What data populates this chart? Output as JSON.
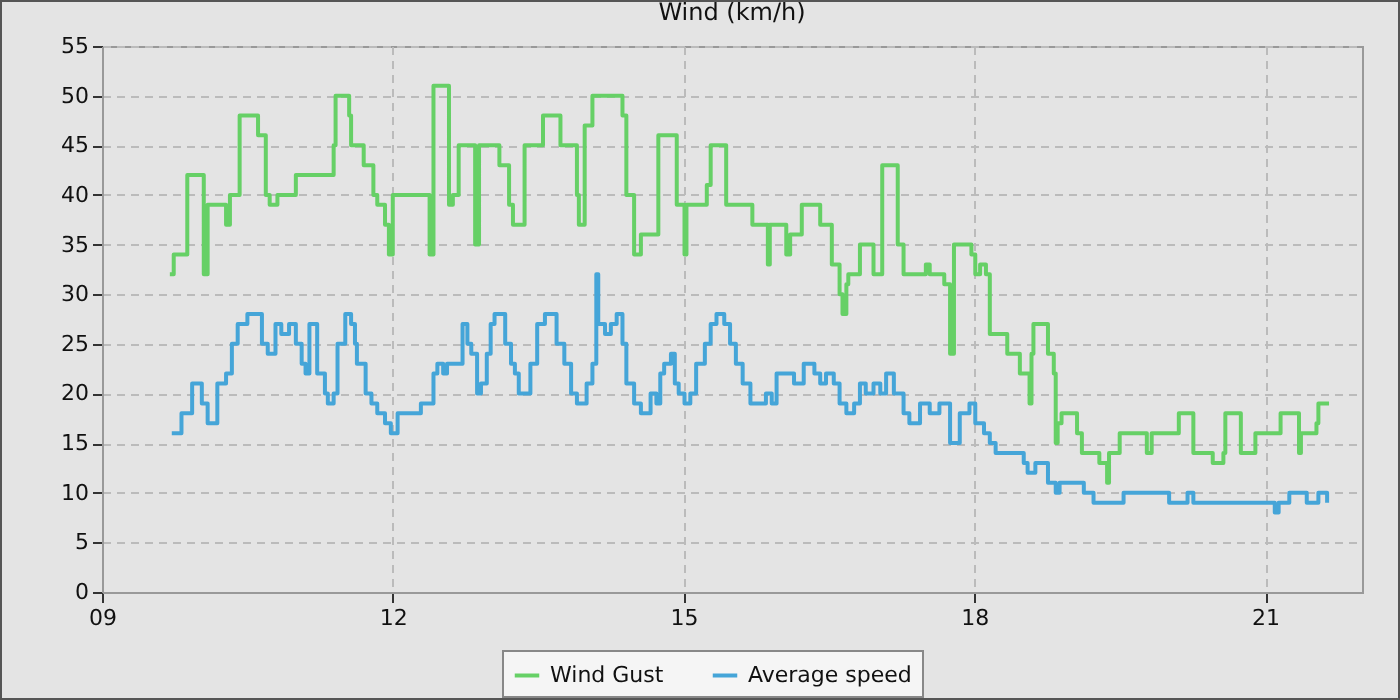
{
  "chart_data": {
    "type": "step",
    "title": "Wind (km/h)",
    "xlim": [
      9,
      22
    ],
    "xticks": [
      {
        "value": 9,
        "label": "09"
      },
      {
        "value": 12,
        "label": "12"
      },
      {
        "value": 15,
        "label": "15"
      },
      {
        "value": 18,
        "label": "18"
      },
      {
        "value": 21,
        "label": "21"
      }
    ],
    "ylim": [
      0,
      55
    ],
    "yticks": [
      0,
      5,
      10,
      15,
      20,
      25,
      30,
      35,
      40,
      45,
      50,
      55
    ],
    "grid": true,
    "legend": "bottom",
    "series": [
      {
        "name": "Wind Gust",
        "color": "#66d066",
        "x": [
          9.7,
          9.74,
          9.88,
          10.05,
          10.09,
          10.28,
          10.32,
          10.42,
          10.61,
          10.69,
          10.73,
          10.81,
          11.0,
          11.39,
          11.41,
          11.55,
          11.57,
          11.7,
          11.8,
          11.84,
          11.92,
          11.96,
          12.0,
          12.38,
          12.42,
          12.58,
          12.62,
          12.68,
          12.85,
          12.89,
          13.1,
          13.2,
          13.24,
          13.36,
          13.55,
          13.73,
          13.9,
          13.92,
          13.98,
          14.06,
          14.37,
          14.41,
          14.49,
          14.56,
          14.74,
          14.93,
          15.01,
          15.03,
          15.24,
          15.28,
          15.44,
          15.71,
          15.87,
          15.89,
          16.06,
          16.1,
          16.22,
          16.41,
          16.53,
          16.61,
          16.64,
          16.68,
          16.7,
          16.82,
          16.96,
          17.05,
          17.21,
          17.27,
          17.5,
          17.54,
          17.69,
          17.75,
          17.79,
          17.97,
          18.01,
          18.06,
          18.12,
          18.16,
          18.34,
          18.47,
          18.57,
          18.59,
          18.61,
          18.76,
          18.82,
          18.84,
          18.86,
          18.9,
          19.06,
          19.11,
          19.29,
          19.37,
          19.39,
          19.5,
          19.78,
          19.83,
          20.11,
          20.26,
          20.46,
          20.57,
          20.59,
          20.75,
          20.9,
          21.16,
          21.35,
          21.37,
          21.53,
          21.55,
          21.66
        ],
        "values": [
          32,
          34,
          42,
          32,
          39,
          37,
          40,
          48,
          46,
          40,
          39,
          40,
          42,
          45,
          50,
          48,
          45,
          43,
          40,
          39,
          37,
          34,
          40,
          34,
          51,
          39,
          40,
          45,
          35,
          45,
          43,
          39,
          37,
          45,
          48,
          45,
          40,
          37,
          47,
          50,
          48,
          40,
          34,
          36,
          46,
          39,
          34,
          39,
          41,
          45,
          39,
          37,
          33,
          37,
          34,
          36,
          39,
          37,
          33,
          30,
          28,
          31,
          32,
          35,
          32,
          43,
          35,
          32,
          33,
          32,
          31,
          24,
          35,
          34,
          32,
          33,
          32,
          26,
          24,
          22,
          19,
          24,
          27,
          24,
          22,
          15,
          17,
          18,
          16,
          14,
          13,
          11,
          14,
          16,
          14,
          16,
          18,
          14,
          13,
          14,
          18,
          14,
          16,
          18,
          14,
          16,
          17,
          19,
          19
        ]
      },
      {
        "name": "Average speed",
        "color": "#45a5d8",
        "x": [
          9.72,
          9.82,
          9.93,
          10.03,
          10.09,
          10.19,
          10.28,
          10.34,
          10.4,
          10.5,
          10.65,
          10.71,
          10.79,
          10.85,
          10.93,
          11.0,
          11.06,
          11.1,
          11.14,
          11.22,
          11.3,
          11.33,
          11.39,
          11.43,
          11.51,
          11.57,
          11.61,
          11.63,
          11.72,
          11.78,
          11.84,
          11.92,
          11.98,
          12.05,
          12.29,
          12.42,
          12.46,
          12.52,
          12.56,
          12.72,
          12.77,
          12.81,
          12.87,
          12.91,
          12.97,
          13.01,
          13.05,
          13.1,
          13.16,
          13.22,
          13.26,
          13.3,
          13.42,
          13.49,
          13.57,
          13.63,
          13.69,
          13.77,
          13.84,
          13.9,
          14.0,
          14.06,
          14.1,
          14.12,
          14.19,
          14.25,
          14.31,
          14.37,
          14.41,
          14.49,
          14.56,
          14.66,
          14.72,
          14.76,
          14.8,
          14.87,
          14.91,
          14.95,
          15.01,
          15.07,
          15.13,
          15.22,
          15.28,
          15.34,
          15.42,
          15.48,
          15.54,
          15.61,
          15.69,
          15.79,
          15.85,
          15.91,
          15.96,
          16.14,
          16.24,
          16.35,
          16.41,
          16.47,
          16.55,
          16.61,
          16.68,
          16.76,
          16.82,
          16.88,
          16.96,
          17.03,
          17.09,
          17.17,
          17.27,
          17.33,
          17.44,
          17.54,
          17.64,
          17.75,
          17.85,
          17.95,
          18.01,
          18.1,
          18.16,
          18.22,
          18.51,
          18.55,
          18.63,
          18.76,
          18.84,
          18.88,
          19.13,
          19.23,
          19.54,
          20.01,
          20.2,
          20.26,
          21.1,
          21.14,
          21.25,
          21.43,
          21.55,
          21.64
        ],
        "values": [
          16,
          18,
          21,
          19,
          17,
          21,
          22,
          25,
          27,
          28,
          25,
          24,
          27,
          26,
          27,
          25,
          23,
          22,
          27,
          22,
          20,
          19,
          20,
          25,
          28,
          27,
          25,
          23,
          20,
          19,
          18,
          17,
          16,
          18,
          19,
          22,
          23,
          22,
          23,
          27,
          25,
          24,
          20,
          21,
          24,
          27,
          28,
          28,
          25,
          23,
          22,
          20,
          23,
          27,
          28,
          28,
          25,
          23,
          20,
          19,
          21,
          23,
          32,
          27,
          26,
          27,
          28,
          25,
          21,
          19,
          18,
          20,
          19,
          22,
          23,
          24,
          21,
          20,
          19,
          20,
          23,
          25,
          27,
          28,
          27,
          25,
          23,
          21,
          19,
          19,
          20,
          19,
          22,
          21,
          23,
          22,
          21,
          22,
          21,
          19,
          18,
          19,
          21,
          20,
          21,
          20,
          22,
          20,
          18,
          17,
          19,
          18,
          19,
          15,
          18,
          19,
          17,
          16,
          15,
          14,
          13,
          12,
          13,
          11,
          10,
          11,
          10,
          9,
          10,
          9,
          10,
          9,
          8,
          9,
          10,
          9,
          10,
          9
        ]
      }
    ]
  }
}
